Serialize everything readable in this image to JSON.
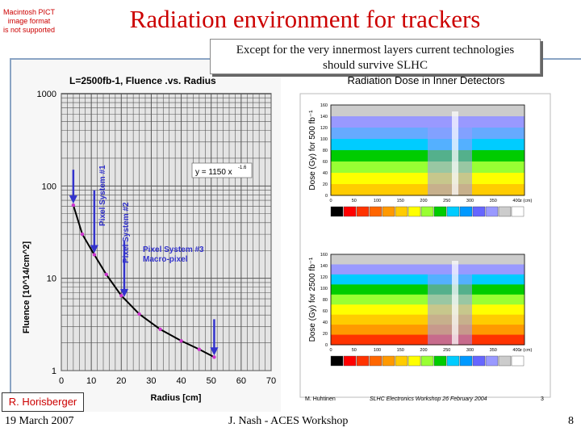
{
  "slide": {
    "title": "Radiation environment for trackers",
    "subtitle_line1": "Except for the very innermost layers current technologies",
    "subtitle_line2": "should survive SLHC",
    "pict_notice": [
      "Macintosh PICT",
      "image format",
      "is not supported"
    ],
    "author_tag": "R. Horisberger",
    "footer_date": "19 March 2007",
    "footer_center": "J. Nash - ACES Workshop",
    "footer_page": "8"
  },
  "colors": {
    "title": "#cc0000",
    "curve": "#000000",
    "markers": "#cc33cc",
    "arrows": "#3333cc",
    "rule": "#8aa4c4"
  },
  "chart_data": [
    {
      "type": "line",
      "title": "L=2500fb-1, Fluence .vs. Radius",
      "xlabel": "Radius [cm]",
      "ylabel": "Fluence [10^14/cm^2]",
      "xlim": [
        0,
        70
      ],
      "ylim": [
        1,
        1000
      ],
      "log_y": true,
      "grid": true,
      "x_ticks": [
        "0",
        "10",
        "20",
        "30",
        "40",
        "50",
        "60",
        "70"
      ],
      "y_ticks": [
        "1",
        "10",
        "100",
        "1000"
      ],
      "fit_label": "y = 1150 x",
      "fit_exponent": "-1.6",
      "series": [
        {
          "x": [
            4,
            7,
            11,
            15,
            20,
            26,
            33,
            40,
            46,
            51
          ],
          "y": [
            62,
            30,
            18,
            11,
            6.5,
            4.1,
            2.8,
            2.1,
            1.7,
            1.4
          ]
        }
      ],
      "annotations": [
        {
          "text": "Pixel System #1",
          "x": 4
        },
        {
          "text": "Pixel System #2",
          "x": 11
        },
        {
          "text": "Pixel System #3",
          "x": 21
        },
        {
          "text": "Macro-pixel",
          "x": 21
        }
      ],
      "arrow_x": [
        4,
        11,
        21,
        51
      ]
    },
    {
      "type": "heatmap",
      "title": "Radiation Dose in Inner Detectors",
      "panels": [
        {
          "ylabel": "Dose (Gy) for 500 fb⁻¹"
        },
        {
          "ylabel": "Dose (Gy) for 2500 fb⁻¹"
        }
      ],
      "x_ticks": [
        "0",
        "50",
        "100",
        "150",
        "200",
        "250",
        "300",
        "350",
        "400"
      ],
      "y_ticks": [
        "0",
        "20",
        "40",
        "60",
        "80",
        "100",
        "120",
        "140",
        "160"
      ],
      "axis_label": "z (cm)",
      "colorbar_colors": [
        "#000000",
        "#ff0000",
        "#ff3300",
        "#ff6600",
        "#ff9900",
        "#ffcc00",
        "#ffff00",
        "#99ff33",
        "#00cc00",
        "#00ccff",
        "#0099ff",
        "#6666ff",
        "#9999ff",
        "#cccccc",
        "#ffffff"
      ],
      "footer_left": "M. Huhtinen",
      "footer_center": "SLHC Electronics Workshop 26 February 2004",
      "footer_right": "3"
    }
  ]
}
